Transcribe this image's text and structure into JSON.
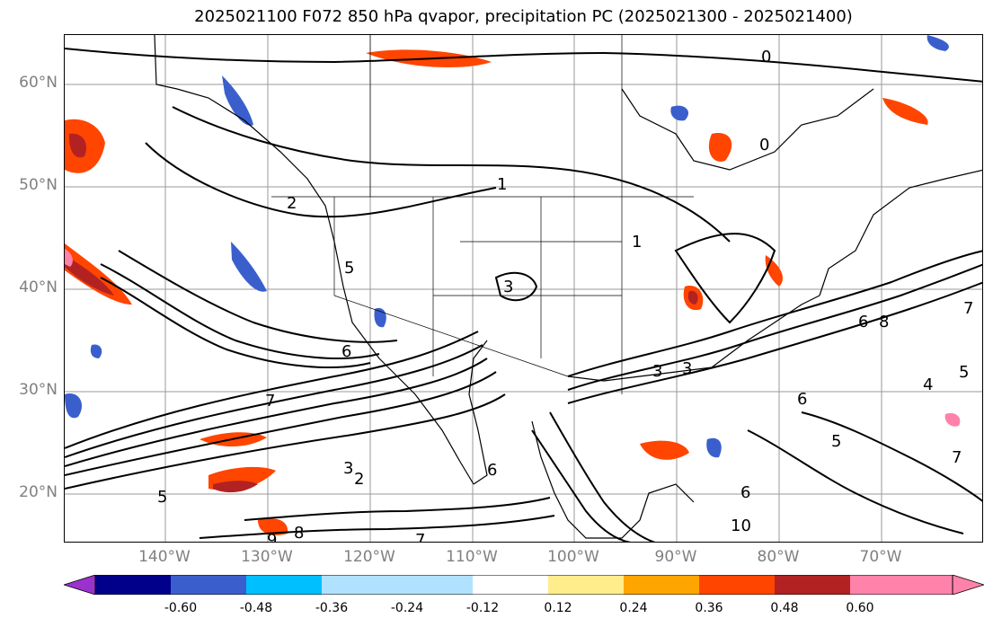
{
  "title": "2025021100 F072 850 hPa qvapor, precipitation PC (2025021300 - 2025021400)",
  "map": {
    "lat_labels": [
      "60°N",
      "50°N",
      "40°N",
      "30°N",
      "20°N"
    ],
    "lon_labels": [
      "140°W",
      "130°W",
      "120°W",
      "110°W",
      "100°W",
      "90°W",
      "80°W",
      "70°W"
    ],
    "contour_labels": [
      "0",
      "0",
      "1",
      "1",
      "2",
      "5",
      "3",
      "3",
      "6",
      "7",
      "3",
      "2",
      "5",
      "6",
      "7",
      "8",
      "6",
      "3",
      "10",
      "9",
      "8",
      "6",
      "7",
      "5",
      "5",
      "6",
      "7",
      "4"
    ]
  },
  "colorbar": {
    "ticks": [
      "-0.60",
      "-0.48",
      "-0.36",
      "-0.24",
      "-0.12",
      "0.12",
      "0.24",
      "0.36",
      "0.48",
      "0.60"
    ],
    "colors": [
      "#9a32cd",
      "#00008b",
      "#3a5fcd",
      "#00bfff",
      "#b0e2ff",
      "#ffffff",
      "#ffec8b",
      "#ffa500",
      "#ff4500",
      "#b22222",
      "#ff82ab",
      "#ff82ab"
    ]
  }
}
